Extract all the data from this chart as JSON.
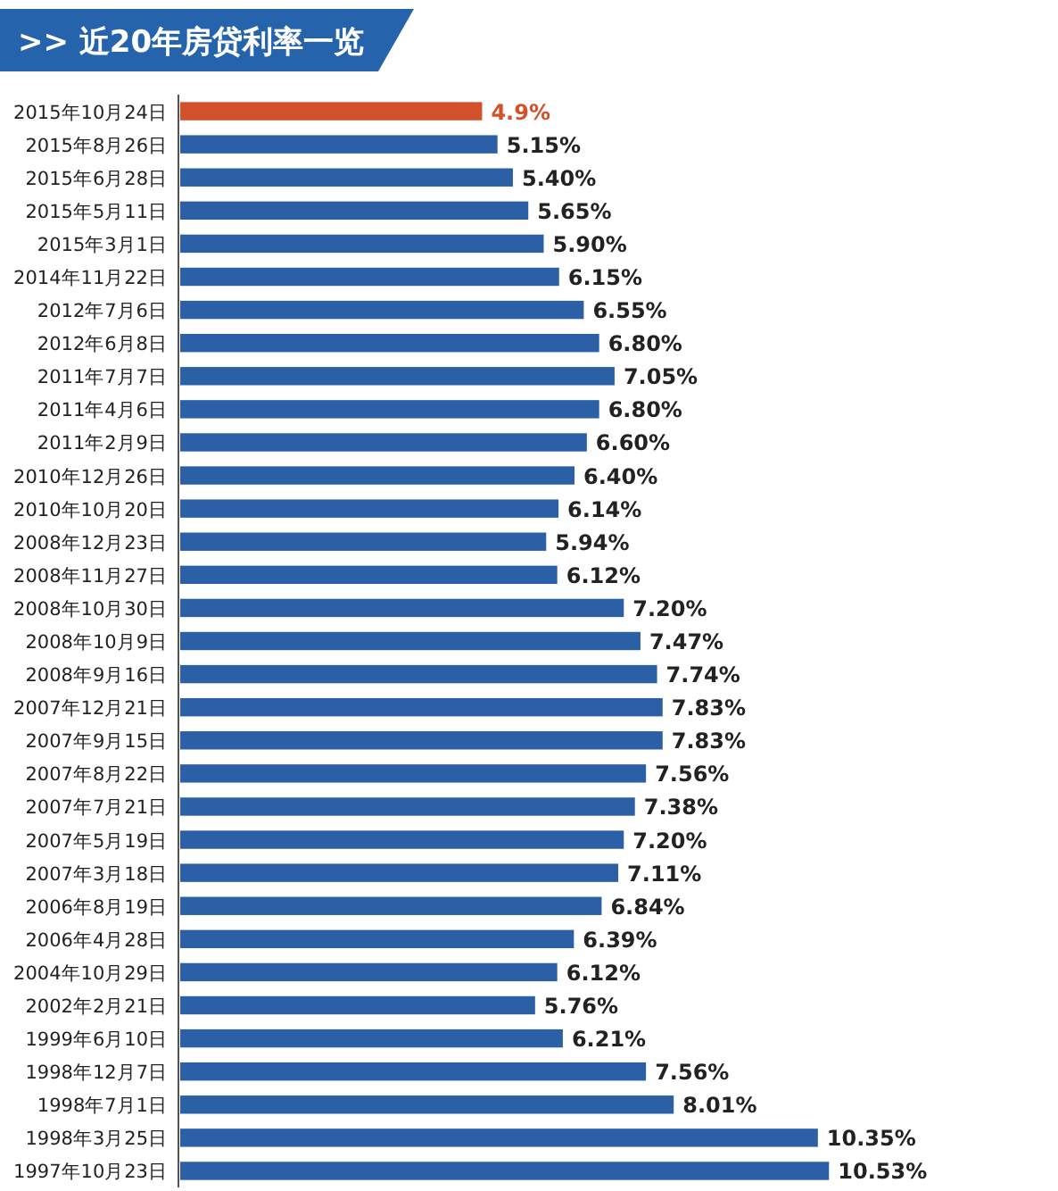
{
  "chart_data": {
    "type": "bar",
    "orientation": "horizontal",
    "title": ">> 近20年房贷利率一览",
    "categories": [
      "2015年10月24日",
      "2015年8月26日",
      "2015年6月28日",
      "2015年5月11日",
      "2015年3月1日",
      "2014年11月22日",
      "2012年7月6日",
      "2012年6月8日",
      "2011年7月7日",
      "2011年4月6日",
      "2011年2月9日",
      "2010年12月26日",
      "2010年10月20日",
      "2008年12月23日",
      "2008年11月27日",
      "2008年10月30日",
      "2008年10月9日",
      "2008年9月16日",
      "2007年12月21日",
      "2007年9月15日",
      "2007年8月22日",
      "2007年7月21日",
      "2007年5月19日",
      "2007年3月18日",
      "2006年8月19日",
      "2006年4月28日",
      "2004年10月29日",
      "2002年2月21日",
      "1999年6月10日",
      "1998年12月7日",
      "1998年7月1日",
      "1998年3月25日",
      "1997年10月23日"
    ],
    "values": [
      4.9,
      5.15,
      5.4,
      5.65,
      5.9,
      6.15,
      6.55,
      6.8,
      7.05,
      6.8,
      6.6,
      6.4,
      6.14,
      5.94,
      6.12,
      7.2,
      7.47,
      7.74,
      7.83,
      7.83,
      7.56,
      7.38,
      7.2,
      7.11,
      6.84,
      6.39,
      6.12,
      5.76,
      6.21,
      7.56,
      8.01,
      10.35,
      10.53
    ],
    "value_labels": [
      "4.9%",
      "5.15%",
      "5.40%",
      "5.65%",
      "5.90%",
      "6.15%",
      "6.55%",
      "6.80%",
      "7.05%",
      "6.80%",
      "6.60%",
      "6.40%",
      "6.14%",
      "5.94%",
      "6.12%",
      "7.20%",
      "7.47%",
      "7.74%",
      "7.83%",
      "7.83%",
      "7.56%",
      "7.38%",
      "7.20%",
      "7.11%",
      "6.84%",
      "6.39%",
      "6.12%",
      "5.76%",
      "6.21%",
      "7.56%",
      "8.01%",
      "10.35%",
      "10.53%"
    ],
    "colors": [
      "#d2502a",
      "#2b5fa6",
      "#2b5fa6",
      "#2b5fa6",
      "#2b5fa6",
      "#2b5fa6",
      "#2b5fa6",
      "#2b5fa6",
      "#2b5fa6",
      "#2b5fa6",
      "#2b5fa6",
      "#2b5fa6",
      "#2b5fa6",
      "#2b5fa6",
      "#2b5fa6",
      "#2b5fa6",
      "#2b5fa6",
      "#2b5fa6",
      "#2b5fa6",
      "#2b5fa6",
      "#2b5fa6",
      "#2b5fa6",
      "#2b5fa6",
      "#2b5fa6",
      "#2b5fa6",
      "#2b5fa6",
      "#2b5fa6",
      "#2b5fa6",
      "#2b5fa6",
      "#2b5fa6",
      "#2b5fa6",
      "#2b5fa6",
      "#2b5fa6"
    ]
  }
}
